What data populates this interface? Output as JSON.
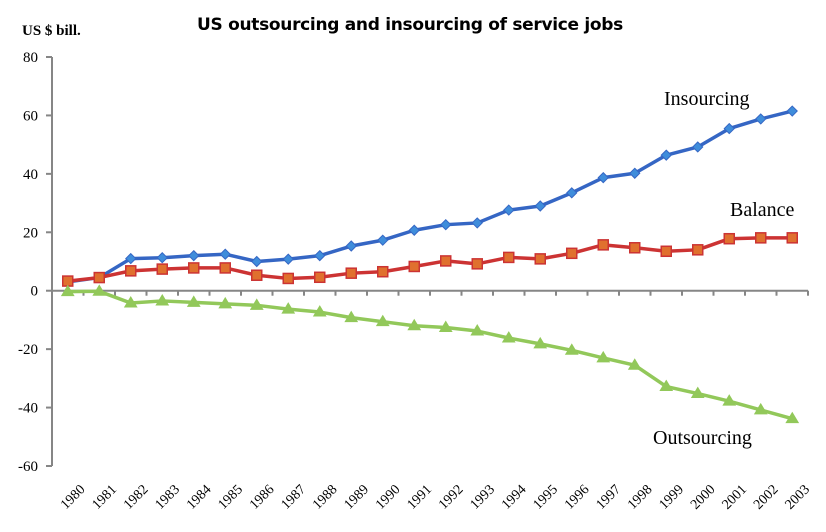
{
  "chart_data": {
    "type": "line",
    "title": "US outsourcing and insourcing of service jobs",
    "ylabel": "US $ bill.",
    "xlabel": "",
    "ylim": [
      -60,
      80
    ],
    "yticks": [
      80,
      60,
      40,
      20,
      0,
      -20,
      -40,
      -60
    ],
    "ytick_labels": [
      "80",
      "60",
      "40",
      "20",
      "0",
      "-20",
      "-40",
      "-60"
    ],
    "grid": false,
    "legend": "inline labels",
    "categories": [
      "1980",
      "1981",
      "1982",
      "1983",
      "1984",
      "1985",
      "1986",
      "1987",
      "1988",
      "1989",
      "1990",
      "1991",
      "1992",
      "1993",
      "1994",
      "1995",
      "1996",
      "1997",
      "1998",
      "1999",
      "2000",
      "2001",
      "2002",
      "2003"
    ],
    "series": [
      {
        "name": "Insourcing",
        "label": "Insourcing",
        "color": "#3566c4",
        "marker_color": "#3f8ddb",
        "marker": "diamond",
        "values": [
          3,
          4.5,
          11,
          11.3,
          12,
          12.5,
          10,
          10.8,
          12,
          15.3,
          17.3,
          20.7,
          22.6,
          23.2,
          27.6,
          29,
          33.5,
          38.7,
          40.2,
          46.4,
          49.2,
          55.5,
          58.8,
          61.5
        ]
      },
      {
        "name": "Balance",
        "label": "Balance",
        "color": "#cc3333",
        "marker_color": "#e0702e",
        "marker": "square",
        "values": [
          3.3,
          4.5,
          6.8,
          7.4,
          7.8,
          7.8,
          5.3,
          4.2,
          4.6,
          6,
          6.5,
          8.3,
          10.2,
          9.2,
          11.4,
          10.9,
          12.8,
          15.7,
          14.7,
          13.5,
          14,
          17.8,
          18.1,
          18.1
        ]
      },
      {
        "name": "Outsourcing",
        "label": "Outsourcing",
        "color": "#92c85a",
        "marker_color": "#92c85a",
        "marker": "triangle",
        "values": [
          -0.3,
          -0.2,
          -4.2,
          -3.5,
          -4,
          -4.5,
          -5,
          -6.3,
          -7.3,
          -9.2,
          -10.6,
          -12,
          -12.6,
          -13.8,
          -16.2,
          -18.2,
          -20.4,
          -23,
          -25.5,
          -32.8,
          -35.2,
          -37.8,
          -40.8,
          -43.8
        ]
      }
    ]
  }
}
